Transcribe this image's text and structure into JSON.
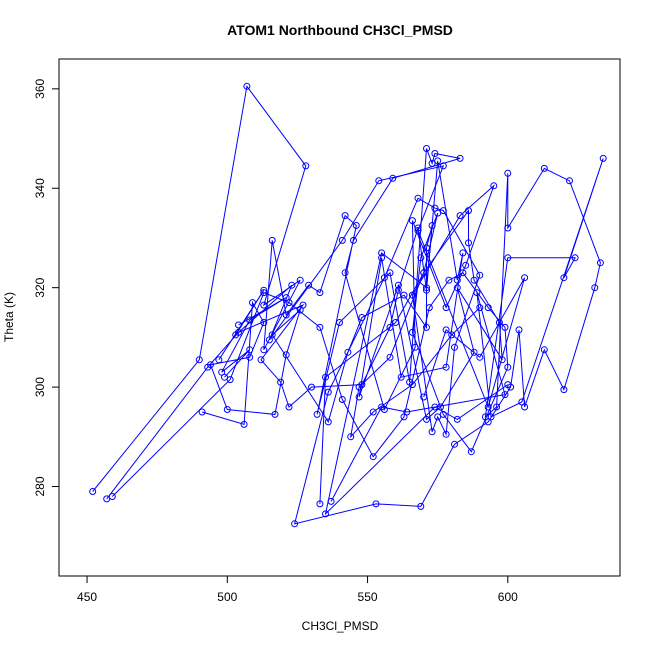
{
  "chart_data": {
    "type": "line",
    "title": "ATOM1 Northbound CH3Cl_PMSD",
    "xlabel": "CH3Cl_PMSD",
    "ylabel": "Theta (K)",
    "xlim": [
      440,
      640
    ],
    "ylim": [
      262,
      366
    ],
    "xticks": [
      450,
      500,
      550,
      600
    ],
    "yticks": [
      280,
      300,
      320,
      340,
      360
    ],
    "grid": false,
    "legend": "none",
    "colors": {
      "series": "#0000ff",
      "frame": "#000000",
      "background": "#ffffff"
    },
    "markers": "open-circle",
    "series": [
      {
        "x": [
          452,
          490,
          507,
          528,
          513,
          526,
          513,
          516,
          521,
          529,
          533,
          542,
          546,
          532,
          540,
          558,
          565,
          571,
          573,
          574,
          583,
          559,
          545,
          542,
          556,
          567,
          566,
          578,
          585,
          595,
          583,
          566,
          573,
          575,
          578,
          581,
          590,
          577,
          574,
          568,
          556,
          536,
          524,
          553,
          569,
          581,
          593,
          601,
          604,
          606,
          613,
          620,
          631,
          633,
          622,
          613,
          600,
          600,
          596,
          592,
          600,
          624,
          620,
          634,
          605,
          594,
          589,
          599,
          564,
          555,
          537
        ],
        "y": [
          279,
          305.5,
          360.5,
          344.5,
          316.5,
          321.5,
          307.5,
          329.5,
          314.5,
          320.5,
          319,
          334.5,
          332.5,
          294.5,
          313,
          323,
          301,
          348,
          345,
          347,
          346,
          342,
          329.5,
          323,
          295.5,
          308,
          333.5,
          316,
          324.5,
          340.5,
          334.5,
          318.5,
          291,
          294,
          290.5,
          308,
          322.5,
          335.5,
          336,
          338,
          322,
          299,
          272.5,
          276.5,
          276,
          288.5,
          293,
          300,
          311.5,
          296,
          307.5,
          299.5,
          320,
          325,
          341.5,
          344,
          332,
          343,
          296,
          294,
          326,
          326,
          322,
          346,
          297,
          294,
          319,
          298.5,
          295,
          296,
          277
        ]
      },
      {
        "x": [
          457,
          493,
          504,
          527,
          512,
          519,
          522,
          530,
          548,
          558,
          561,
          568,
          571,
          575,
          582,
          584,
          578,
          562,
          555,
          547,
          561,
          571,
          576,
          588,
          582,
          598,
          597,
          588,
          586,
          586,
          570,
          560,
          535,
          533
        ],
        "y": [
          277.5,
          304,
          311,
          316.5,
          305.5,
          301,
          296,
          300,
          300.5,
          312,
          319.5,
          332,
          319.5,
          345.5,
          321.5,
          327,
          304,
          302,
          326,
          298,
          320.5,
          293.5,
          296,
          307,
          320,
          305.5,
          313,
          321.5,
          329,
          335.5,
          323,
          313,
          302,
          276.5
        ]
      },
      {
        "x": [
          459,
          501,
          513,
          522,
          533,
          541,
          552,
          563,
          572,
          579,
          584,
          593,
          599,
          600,
          587,
          577,
          566,
          569,
          575,
          570,
          558,
          547,
          544,
          552,
          566,
          580,
          590
        ],
        "y": [
          278,
          301.5,
          319,
          317,
          312,
          297.5,
          286,
          294,
          316,
          321.5,
          323,
          316,
          312,
          304,
          287,
          294.5,
          311,
          326,
          335,
          323,
          306,
          300,
          290,
          295,
          300.5,
          310.5,
          316
        ]
      },
      {
        "x": [
          491,
          506,
          509,
          513,
          508,
          494,
          500,
          517,
          521,
          526,
          516,
          536,
          543,
          548,
          563,
          571,
          571,
          573,
          571,
          555,
          535,
          574,
          582,
          600
        ],
        "y": [
          295,
          292.5,
          317,
          313,
          306,
          304.5,
          295.5,
          294.5,
          306.5,
          315.5,
          310.5,
          293,
          307,
          314,
          318.5,
          312,
          328,
          332.5,
          320,
          327,
          274.5,
          296,
          293.5,
          300.5
        ]
      },
      {
        "x": [
          497,
          513,
          503,
          523,
          515,
          541,
          554,
          577,
          568,
          593,
          606,
          590,
          578,
          570
        ],
        "y": [
          305.5,
          319.5,
          310.5,
          320.5,
          309.5,
          329.5,
          341.5,
          344.5,
          331.5,
          296,
          322,
          306,
          311.5,
          298
        ]
      },
      {
        "x": [
          499,
          508,
          498,
          508,
          521,
          504
        ],
        "y": [
          302,
          307.5,
          303,
          313.5,
          318,
          312.5
        ]
      }
    ]
  }
}
